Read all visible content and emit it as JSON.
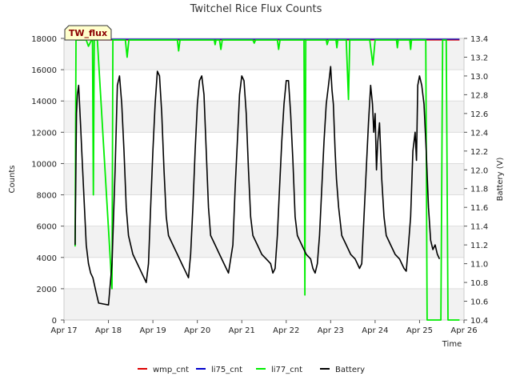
{
  "chart_data": {
    "type": "line",
    "title": "Twitchel Rice Flux Counts",
    "tag": "TW_flux",
    "xlabel": "Time",
    "ylabel": "Counts",
    "y2label": "Battery (V)",
    "xlim": [
      0,
      9
    ],
    "ylim": [
      0,
      18000
    ],
    "y2lim": [
      10.4,
      13.4
    ],
    "x_ticks": [
      {
        "value": 0,
        "label": "Apr 17"
      },
      {
        "value": 1,
        "label": "Apr 18"
      },
      {
        "value": 2,
        "label": "Apr 19"
      },
      {
        "value": 3,
        "label": "Apr 20"
      },
      {
        "value": 4,
        "label": "Apr 21"
      },
      {
        "value": 5,
        "label": "Apr 22"
      },
      {
        "value": 6,
        "label": "Apr 23"
      },
      {
        "value": 7,
        "label": "Apr 24"
      },
      {
        "value": 8,
        "label": "Apr 25"
      },
      {
        "value": 9,
        "label": "Apr 26"
      }
    ],
    "y_ticks": [
      0,
      2000,
      4000,
      6000,
      8000,
      10000,
      12000,
      14000,
      16000,
      18000
    ],
    "y2_ticks": [
      10.4,
      10.6,
      10.8,
      11.0,
      11.2,
      11.4,
      11.6,
      11.8,
      12.0,
      12.2,
      12.4,
      12.6,
      12.8,
      13.0,
      13.2,
      13.4
    ],
    "legend": [
      "wmp_cnt",
      "li75_cnt",
      "li77_cnt",
      "Battery"
    ],
    "series": [
      {
        "name": "wmp_cnt",
        "axis": "left",
        "color": "#dd0000",
        "points": [
          [
            0.25,
            17900
          ],
          [
            8.9,
            17900
          ]
        ]
      },
      {
        "name": "li75_cnt",
        "axis": "left",
        "color": "#0000cc",
        "points": [
          [
            0.25,
            17950
          ],
          [
            8.9,
            17950
          ]
        ]
      },
      {
        "name": "li77_cnt",
        "axis": "left",
        "color": "#00ee00",
        "points": [
          [
            0.25,
            4700
          ],
          [
            0.27,
            17900
          ],
          [
            0.5,
            17900
          ],
          [
            0.55,
            17500
          ],
          [
            0.62,
            17900
          ],
          [
            0.64,
            17900
          ],
          [
            0.66,
            8000
          ],
          [
            0.68,
            17900
          ],
          [
            0.75,
            17900
          ],
          [
            1.08,
            2000
          ],
          [
            1.1,
            17900
          ],
          [
            1.38,
            17900
          ],
          [
            1.42,
            16800
          ],
          [
            1.46,
            17900
          ],
          [
            2.55,
            17900
          ],
          [
            2.58,
            17200
          ],
          [
            2.61,
            17900
          ],
          [
            3.38,
            17900
          ],
          [
            3.4,
            17600
          ],
          [
            3.42,
            17900
          ],
          [
            3.5,
            17900
          ],
          [
            3.53,
            17300
          ],
          [
            3.56,
            17900
          ],
          [
            4.25,
            17900
          ],
          [
            4.28,
            17700
          ],
          [
            4.31,
            17900
          ],
          [
            4.8,
            17900
          ],
          [
            4.83,
            17300
          ],
          [
            4.86,
            17900
          ],
          [
            5.4,
            17900
          ],
          [
            5.42,
            1600
          ],
          [
            5.44,
            17900
          ],
          [
            5.9,
            17900
          ],
          [
            5.92,
            17600
          ],
          [
            5.95,
            17900
          ],
          [
            6.12,
            17900
          ],
          [
            6.14,
            17400
          ],
          [
            6.16,
            17900
          ],
          [
            6.35,
            17900
          ],
          [
            6.4,
            14100
          ],
          [
            6.43,
            17900
          ],
          [
            6.88,
            17900
          ],
          [
            6.95,
            16300
          ],
          [
            7,
            17900
          ],
          [
            7.48,
            17900
          ],
          [
            7.5,
            17400
          ],
          [
            7.52,
            17900
          ],
          [
            7.78,
            17900
          ],
          [
            7.8,
            17300
          ],
          [
            7.82,
            17900
          ],
          [
            8.14,
            17900
          ],
          [
            8.17,
            0
          ],
          [
            8.48,
            0
          ],
          [
            8.52,
            17900
          ],
          [
            8.6,
            17900
          ],
          [
            8.64,
            0
          ],
          [
            8.9,
            0
          ]
        ]
      },
      {
        "name": "Battery",
        "axis": "right",
        "color": "#000000",
        "points": [
          [
            0.25,
            11.2
          ],
          [
            0.28,
            12.6
          ],
          [
            0.3,
            12.8
          ],
          [
            0.33,
            12.9
          ],
          [
            0.37,
            12.5
          ],
          [
            0.4,
            12.2
          ],
          [
            0.45,
            11.7
          ],
          [
            0.5,
            11.2
          ],
          [
            0.55,
            11.0
          ],
          [
            0.6,
            10.9
          ],
          [
            0.65,
            10.85
          ],
          [
            0.72,
            10.7
          ],
          [
            0.78,
            10.58
          ],
          [
            0.9,
            10.57
          ],
          [
            1.0,
            10.56
          ],
          [
            1.08,
            11.0
          ],
          [
            1.15,
            12.0
          ],
          [
            1.2,
            12.9
          ],
          [
            1.25,
            13.0
          ],
          [
            1.3,
            12.7
          ],
          [
            1.35,
            12.2
          ],
          [
            1.4,
            11.6
          ],
          [
            1.45,
            11.3
          ],
          [
            1.55,
            11.1
          ],
          [
            1.65,
            11.0
          ],
          [
            1.75,
            10.9
          ],
          [
            1.85,
            10.8
          ],
          [
            1.9,
            11.0
          ],
          [
            1.95,
            11.6
          ],
          [
            2.0,
            12.2
          ],
          [
            2.05,
            12.7
          ],
          [
            2.1,
            13.05
          ],
          [
            2.15,
            13.0
          ],
          [
            2.2,
            12.6
          ],
          [
            2.25,
            12.0
          ],
          [
            2.3,
            11.5
          ],
          [
            2.35,
            11.3
          ],
          [
            2.45,
            11.2
          ],
          [
            2.55,
            11.1
          ],
          [
            2.65,
            11.0
          ],
          [
            2.75,
            10.9
          ],
          [
            2.8,
            10.85
          ],
          [
            2.85,
            11.1
          ],
          [
            2.9,
            11.6
          ],
          [
            2.95,
            12.2
          ],
          [
            3.0,
            12.7
          ],
          [
            3.05,
            12.95
          ],
          [
            3.1,
            13.0
          ],
          [
            3.15,
            12.8
          ],
          [
            3.2,
            12.2
          ],
          [
            3.25,
            11.6
          ],
          [
            3.3,
            11.3
          ],
          [
            3.4,
            11.2
          ],
          [
            3.5,
            11.1
          ],
          [
            3.6,
            11.0
          ],
          [
            3.7,
            10.9
          ],
          [
            3.8,
            11.2
          ],
          [
            3.85,
            11.8
          ],
          [
            3.9,
            12.3
          ],
          [
            3.95,
            12.8
          ],
          [
            4.0,
            13.0
          ],
          [
            4.05,
            12.95
          ],
          [
            4.1,
            12.6
          ],
          [
            4.15,
            12.0
          ],
          [
            4.2,
            11.5
          ],
          [
            4.25,
            11.3
          ],
          [
            4.35,
            11.2
          ],
          [
            4.45,
            11.1
          ],
          [
            4.55,
            11.05
          ],
          [
            4.65,
            11.0
          ],
          [
            4.7,
            10.9
          ],
          [
            4.75,
            10.95
          ],
          [
            4.8,
            11.3
          ],
          [
            4.85,
            11.8
          ],
          [
            4.9,
            12.3
          ],
          [
            4.95,
            12.7
          ],
          [
            5.0,
            12.95
          ],
          [
            5.05,
            12.95
          ],
          [
            5.1,
            12.6
          ],
          [
            5.15,
            12.1
          ],
          [
            5.2,
            11.5
          ],
          [
            5.25,
            11.3
          ],
          [
            5.35,
            11.2
          ],
          [
            5.45,
            11.1
          ],
          [
            5.55,
            11.05
          ],
          [
            5.6,
            10.95
          ],
          [
            5.65,
            10.9
          ],
          [
            5.7,
            11.0
          ],
          [
            5.75,
            11.3
          ],
          [
            5.8,
            11.8
          ],
          [
            5.85,
            12.3
          ],
          [
            5.9,
            12.7
          ],
          [
            5.95,
            12.9
          ],
          [
            6.0,
            13.1
          ],
          [
            6.03,
            12.85
          ],
          [
            6.06,
            12.7
          ],
          [
            6.1,
            12.2
          ],
          [
            6.13,
            11.9
          ],
          [
            6.18,
            11.6
          ],
          [
            6.25,
            11.3
          ],
          [
            6.35,
            11.2
          ],
          [
            6.45,
            11.1
          ],
          [
            6.55,
            11.05
          ],
          [
            6.6,
            11.0
          ],
          [
            6.65,
            10.95
          ],
          [
            6.7,
            11.0
          ],
          [
            6.75,
            11.5
          ],
          [
            6.8,
            12.0
          ],
          [
            6.85,
            12.5
          ],
          [
            6.9,
            12.9
          ],
          [
            6.94,
            12.7
          ],
          [
            6.97,
            12.4
          ],
          [
            7.0,
            12.6
          ],
          [
            7.03,
            12.0
          ],
          [
            7.06,
            12.3
          ],
          [
            7.1,
            12.5
          ],
          [
            7.15,
            11.9
          ],
          [
            7.2,
            11.5
          ],
          [
            7.25,
            11.3
          ],
          [
            7.35,
            11.2
          ],
          [
            7.45,
            11.1
          ],
          [
            7.55,
            11.05
          ],
          [
            7.6,
            11.0
          ],
          [
            7.65,
            10.95
          ],
          [
            7.7,
            10.92
          ],
          [
            7.75,
            11.2
          ],
          [
            7.8,
            11.5
          ],
          [
            7.85,
            12.2
          ],
          [
            7.9,
            12.4
          ],
          [
            7.93,
            12.1
          ],
          [
            7.96,
            12.9
          ],
          [
            8.0,
            13.0
          ],
          [
            8.05,
            12.9
          ],
          [
            8.1,
            12.7
          ],
          [
            8.15,
            12.2
          ],
          [
            8.2,
            11.6
          ],
          [
            8.25,
            11.25
          ],
          [
            8.3,
            11.15
          ],
          [
            8.35,
            11.2
          ],
          [
            8.4,
            11.1
          ],
          [
            8.45,
            11.05
          ]
        ]
      }
    ]
  }
}
